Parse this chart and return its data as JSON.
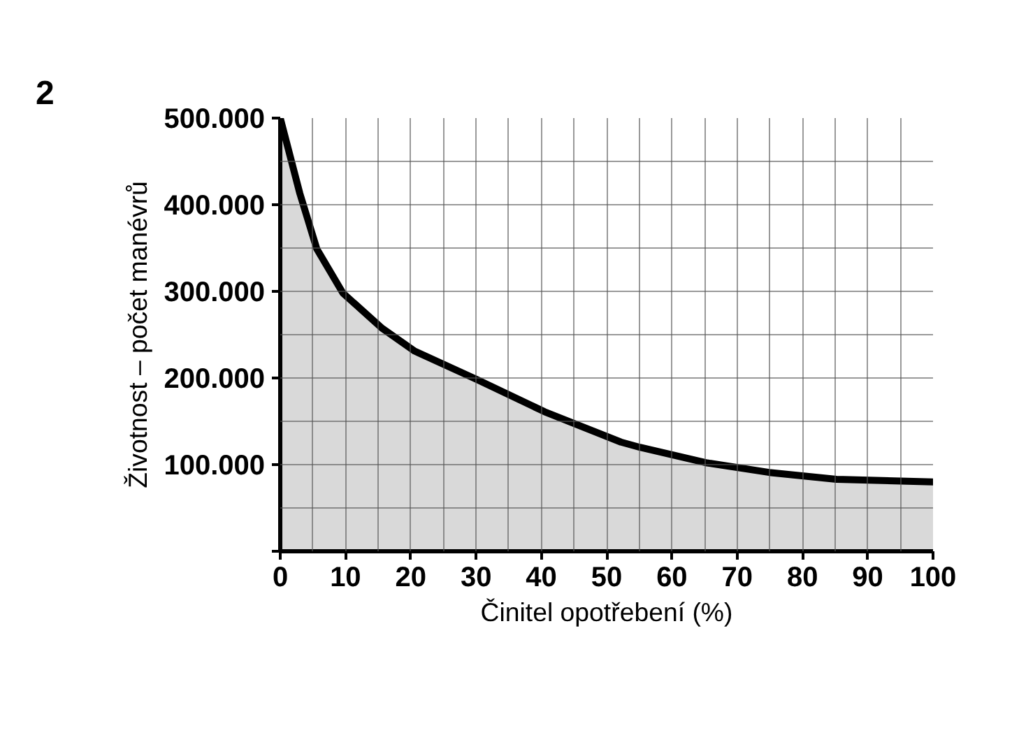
{
  "chart_data": {
    "type": "area",
    "xlabel": "Činitel opotřebení (%)",
    "ylabel": "Životnost – počet manévrů",
    "annotations": [
      "2"
    ],
    "x": [
      0,
      3,
      5.6,
      9.6,
      15.5,
      20.6,
      30.2,
      40.5,
      52.2,
      55.1,
      65.4,
      74.9,
      85.2,
      100
    ],
    "series": [
      {
        "color": "#000000",
        "values": [
          500000,
          413000,
          349000,
          298000,
          258000,
          231000,
          198000,
          161000,
          126000,
          120000,
          102000,
          91000,
          83000,
          80000
        ]
      }
    ],
    "xlim": [
      0,
      100
    ],
    "xticks": [
      0,
      10,
      20,
      30,
      40,
      50,
      60,
      70,
      80,
      90,
      100
    ],
    "ylim": [
      0,
      500000
    ],
    "yticks": [
      {
        "value": 0,
        "label": null
      },
      {
        "value": 100000,
        "label": "100.000"
      },
      {
        "value": 200000,
        "label": "200.000"
      },
      {
        "value": 300000,
        "label": "300.000"
      },
      {
        "value": 400000,
        "label": "400.000"
      },
      {
        "value": 500000,
        "label": "500.000"
      }
    ],
    "grid": true
  }
}
